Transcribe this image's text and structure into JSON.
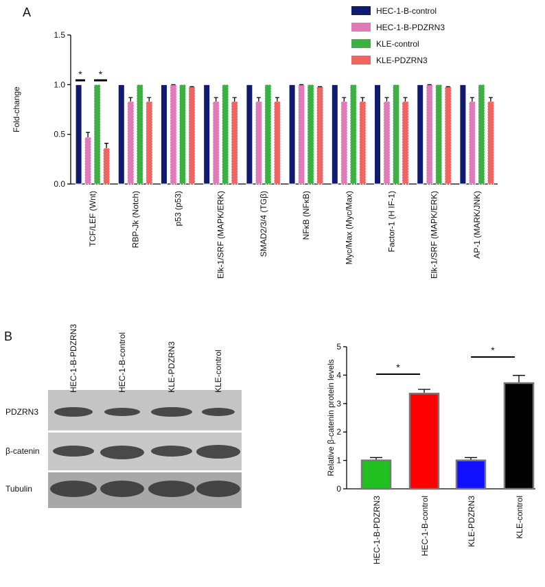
{
  "panels": [
    "A",
    "B"
  ],
  "blot": {
    "lanes": [
      "HEC-1-B-PDZRN3",
      "HEC-1-B-control",
      "KLE-PDZRN3",
      "KLE-control"
    ],
    "rows": [
      "PDZRN3",
      "β-catenin",
      "Tubulin"
    ]
  },
  "chart_data": [
    {
      "type": "grouped-bar",
      "y_label": "Fold-change",
      "categories": [
        "TCF/LEF (Wnt)",
        "RBP-Jk (Notch)",
        "p53 (p53)",
        "Elk-1/SRF (MAPK/ERK)",
        "SMAD2/3/4 (TGβ)",
        "NFκB (NFκB)",
        "Myc/Max (Myc/Max)",
        "Factor-1 (H IF-1)",
        "Elk-1/SRF (MAPK/ERK)",
        "AP-1 (MARK/JNK)"
      ],
      "series": [
        {
          "name": "HEC-1-B-control",
          "color": "#101a6e",
          "values": [
            1.0,
            1.0,
            1.0,
            1.0,
            1.0,
            1.0,
            1.0,
            1.0,
            1.0,
            1.0
          ]
        },
        {
          "name": "HEC-1-B-PDZRN3",
          "color": "#e07ab8",
          "values": [
            0.47,
            0.83,
            1.0,
            0.83,
            0.83,
            1.0,
            0.83,
            0.83,
            1.0,
            0.83
          ],
          "errors": [
            0.05,
            0.04,
            0,
            0.04,
            0.04,
            0,
            0.04,
            0.04,
            0,
            0.04
          ]
        },
        {
          "name": "KLE-control",
          "color": "#3cb043",
          "values": [
            1.0,
            1.0,
            1.0,
            1.0,
            1.0,
            1.0,
            1.0,
            1.0,
            1.0,
            1.0
          ]
        },
        {
          "name": "KLE-PDZRN3",
          "color": "#f06464",
          "values": [
            0.36,
            0.83,
            0.98,
            0.83,
            0.83,
            0.98,
            0.83,
            0.83,
            0.98,
            0.83
          ],
          "errors": [
            0.05,
            0.04,
            0,
            0.04,
            0.04,
            0,
            0.04,
            0.04,
            0,
            0.04
          ]
        }
      ],
      "ylim": [
        0,
        1.5
      ],
      "yticks": [
        {
          "value": 0,
          "label": "0.0"
        },
        0.5,
        {
          "value": 1,
          "label": "1.0"
        },
        1.5
      ],
      "annotations": [
        "*",
        "*"
      ]
    },
    {
      "type": "bar",
      "y_label": "Relative β-catenin protein levels",
      "categories": [
        "HEC-1-B-PDZRN3",
        "HEC-1-B-control",
        "KLE-PDZRN3",
        "KLE-control"
      ],
      "values": [
        1.0,
        3.35,
        1.0,
        3.72
      ],
      "errors": [
        0.1,
        0.15,
        0.1,
        0.27
      ],
      "colors": [
        "#1fc01f",
        "#ff0000",
        "#1010ff",
        "#000000"
      ],
      "ylim": [
        0,
        5
      ],
      "yticks": [
        0,
        1,
        2,
        3,
        4,
        5
      ],
      "annotations": [
        "*",
        "*"
      ]
    }
  ]
}
